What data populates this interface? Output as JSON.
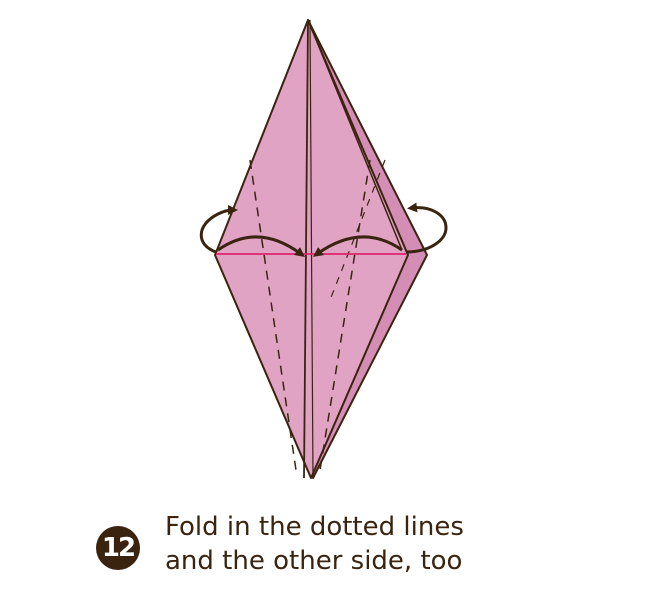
{
  "step": {
    "number": "12",
    "instruction_line1": "Fold in the dotted lines",
    "instruction_line2": "and the other side, too"
  },
  "colors": {
    "paper": "#e0a3c4",
    "paper_back": "#d48db5",
    "outline": "#3a2410",
    "valley_line": "#e0246e",
    "arrow": "#3a2410",
    "badge": "#3a2410"
  }
}
